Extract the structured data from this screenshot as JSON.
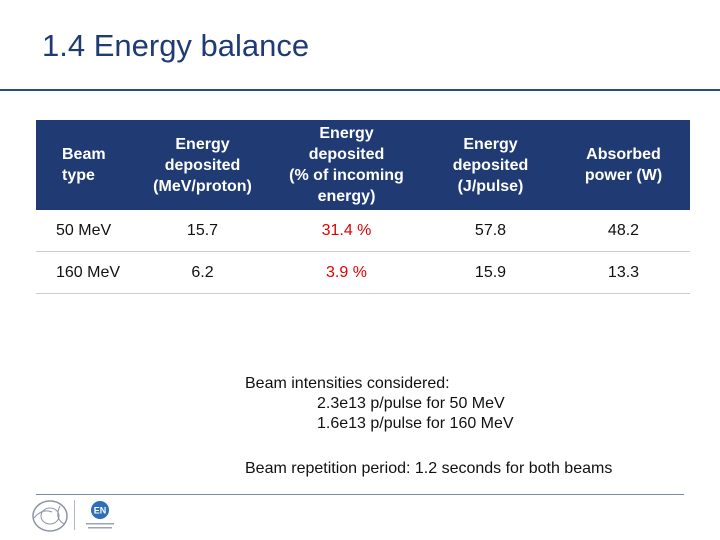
{
  "title": "1.4 Energy balance",
  "table": {
    "headers": [
      [
        "Beam",
        "type"
      ],
      [
        "Energy",
        "deposited",
        "(MeV/proton)"
      ],
      [
        "Energy",
        "deposited",
        "(% of incoming",
        "energy)"
      ],
      [
        "Energy",
        "deposited",
        "(J/pulse)"
      ],
      [
        "Absorbed",
        "power (W)"
      ]
    ],
    "rows": [
      [
        "50 MeV",
        "15.7",
        "31.4 %",
        "57.8",
        "48.2"
      ],
      [
        "160 MeV",
        "6.2",
        "3.9 %",
        "15.9",
        "13.3"
      ]
    ],
    "header_bg": "#203b73",
    "highlight_color": "#e00000"
  },
  "notes": {
    "intensities_label": "Beam intensities considered:",
    "intensity_lines": [
      "2.3e13 p/pulse for 50 MeV",
      "1.6e13 p/pulse for 160 MeV"
    ],
    "repetition": "Beam repetition period: 1.2 seconds for both beams"
  },
  "footer": {
    "logos": [
      "cern-logo",
      "en-department-logo"
    ],
    "en_logo_text": "EN"
  }
}
